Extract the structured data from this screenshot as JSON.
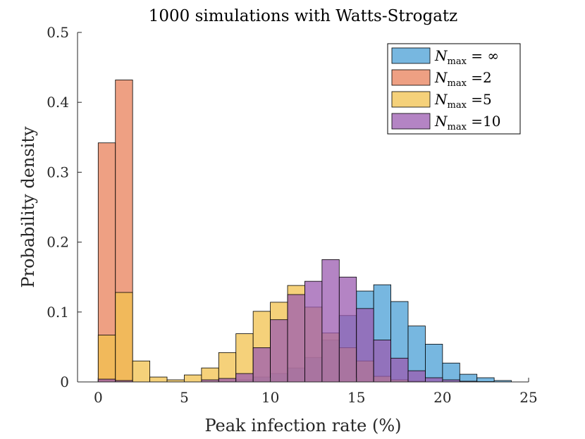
{
  "chart_data": {
    "type": "bar",
    "subtype": "overlaid-histogram",
    "title": "1000 simulations with Watts-Strogatz",
    "xlabel": "Peak infection rate (%)",
    "ylabel": "Probability density",
    "xlim": [
      -1.2,
      25
    ],
    "ylim": [
      0,
      0.5
    ],
    "xticks": [
      0,
      5,
      10,
      15,
      20,
      25
    ],
    "yticks": [
      0,
      0.1,
      0.2,
      0.3,
      0.4,
      0.5
    ],
    "xtick_labels": [
      "0",
      "5",
      "10",
      "15",
      "20",
      "25"
    ],
    "ytick_labels": [
      "0",
      "0.1",
      "0.2",
      "0.3",
      "0.4",
      "0.5"
    ],
    "bin_edges": [
      0,
      1,
      2,
      3,
      4,
      5,
      6,
      7,
      8,
      9,
      10,
      11,
      12,
      13,
      14,
      15,
      16,
      17,
      18,
      19,
      20,
      21,
      22,
      23,
      24
    ],
    "legend_position": "top-right",
    "series": [
      {
        "name": "N_max = ∞",
        "legend_prefix": "N",
        "legend_sub": "max",
        "legend_suffix": " = ∞",
        "color": "#4a9fd6",
        "values": [
          0.002,
          0.001,
          0,
          0,
          0,
          0,
          0,
          0.001,
          0.003,
          0.007,
          0.012,
          0.02,
          0.035,
          0.06,
          0.095,
          0.13,
          0.139,
          0.115,
          0.08,
          0.054,
          0.027,
          0.011,
          0.006,
          0.002
        ]
      },
      {
        "name": "N_max =2",
        "legend_prefix": "N",
        "legend_sub": "max",
        "legend_suffix": " =2",
        "color": "#e8805a",
        "values": [
          0.342,
          0.432,
          0,
          0,
          0,
          0,
          0,
          0,
          0,
          0,
          0,
          0,
          0,
          0,
          0,
          0,
          0,
          0,
          0,
          0,
          0,
          0,
          0,
          0
        ]
      },
      {
        "name": "N_max =5",
        "legend_prefix": "N",
        "legend_sub": "max",
        "legend_suffix": " =5",
        "color": "#f2c14e",
        "values": [
          0.067,
          0.128,
          0.03,
          0.007,
          0.003,
          0.01,
          0.02,
          0.042,
          0.069,
          0.101,
          0.114,
          0.138,
          0.107,
          0.07,
          0.049,
          0.03,
          0.008,
          0.003,
          0.001,
          0,
          0,
          0,
          0,
          0
        ]
      },
      {
        "name": "N_max =10",
        "legend_prefix": "N",
        "legend_sub": "max",
        "legend_suffix": " =10",
        "color": "#9b5bb0",
        "values": [
          0.004,
          0.002,
          0,
          0,
          0,
          0,
          0.003,
          0.005,
          0.012,
          0.049,
          0.089,
          0.125,
          0.144,
          0.175,
          0.15,
          0.105,
          0.06,
          0.034,
          0.016,
          0.006,
          0.003,
          0.001,
          0.0005,
          0
        ]
      }
    ]
  }
}
